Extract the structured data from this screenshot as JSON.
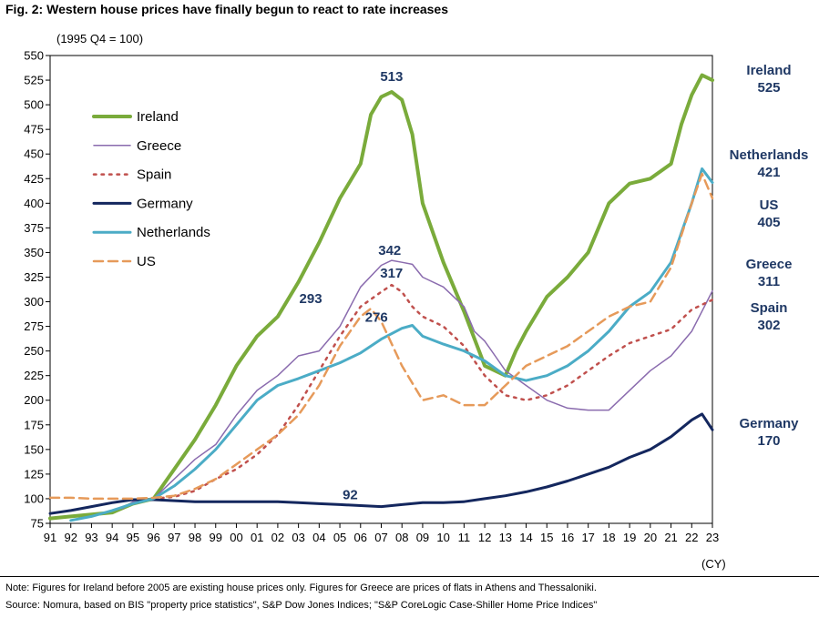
{
  "title": "Fig. 2: Western house prices have finally begun to react to rate increases",
  "unit_label": "(1995 Q4 = 100)",
  "xaxis_suffix": "(CY)",
  "note": "Note: Figures for Ireland before 2005 are existing house prices only. Figures for Greece are prices of flats in Athens and Thessaloniki.",
  "source": "Source: Nomura, based on BIS \"property price statistics\", S&P Dow Jones Indices; \"S&P CoreLogic Case-Shiller Home Price Indices\"",
  "chart_data": {
    "type": "line",
    "xlim": [
      1991,
      2023
    ],
    "ylim": [
      75,
      550
    ],
    "y_ticks": [
      75,
      100,
      125,
      150,
      175,
      200,
      225,
      250,
      275,
      300,
      325,
      350,
      375,
      400,
      425,
      450,
      475,
      500,
      525,
      550
    ],
    "x_tick_labels": [
      "91",
      "92",
      "93",
      "94",
      "95",
      "96",
      "97",
      "98",
      "99",
      "00",
      "01",
      "02",
      "03",
      "04",
      "05",
      "06",
      "07",
      "08",
      "09",
      "10",
      "11",
      "12",
      "13",
      "14",
      "15",
      "16",
      "17",
      "18",
      "19",
      "20",
      "21",
      "22",
      "23"
    ],
    "legend_position": "top-left",
    "series": [
      {
        "name": "Ireland",
        "color": "#7aab3b",
        "style": "solid",
        "width": 4,
        "points": [
          [
            1991,
            80
          ],
          [
            1992,
            82
          ],
          [
            1993,
            84
          ],
          [
            1994,
            86
          ],
          [
            1995,
            95
          ],
          [
            1996,
            100
          ],
          [
            1997,
            130
          ],
          [
            1998,
            160
          ],
          [
            1999,
            195
          ],
          [
            2000,
            235
          ],
          [
            2001,
            265
          ],
          [
            2002,
            285
          ],
          [
            2003,
            320
          ],
          [
            2004,
            360
          ],
          [
            2005,
            405
          ],
          [
            2006,
            440
          ],
          [
            2006.5,
            490
          ],
          [
            2007,
            508
          ],
          [
            2007.5,
            513
          ],
          [
            2008,
            505
          ],
          [
            2008.5,
            470
          ],
          [
            2009,
            400
          ],
          [
            2009.5,
            370
          ],
          [
            2010,
            340
          ],
          [
            2011,
            290
          ],
          [
            2012,
            235
          ],
          [
            2013,
            225
          ],
          [
            2013.5,
            250
          ],
          [
            2014,
            270
          ],
          [
            2015,
            305
          ],
          [
            2016,
            325
          ],
          [
            2017,
            350
          ],
          [
            2018,
            400
          ],
          [
            2019,
            420
          ],
          [
            2020,
            425
          ],
          [
            2021,
            440
          ],
          [
            2021.5,
            480
          ],
          [
            2022,
            510
          ],
          [
            2022.5,
            530
          ],
          [
            2023,
            525
          ]
        ]
      },
      {
        "name": "Greece",
        "color": "#8a6bae",
        "style": "solid",
        "width": 1.5,
        "points": [
          [
            1994.5,
            90
          ],
          [
            1995,
            97
          ],
          [
            1996,
            100
          ],
          [
            1997,
            120
          ],
          [
            1998,
            140
          ],
          [
            1999,
            155
          ],
          [
            2000,
            185
          ],
          [
            2001,
            210
          ],
          [
            2002,
            225
          ],
          [
            2003,
            245
          ],
          [
            2004,
            250
          ],
          [
            2005,
            275
          ],
          [
            2006,
            315
          ],
          [
            2007,
            337
          ],
          [
            2007.5,
            342
          ],
          [
            2008,
            340
          ],
          [
            2008.5,
            338
          ],
          [
            2009,
            325
          ],
          [
            2010,
            315
          ],
          [
            2011,
            295
          ],
          [
            2011.5,
            270
          ],
          [
            2012,
            260
          ],
          [
            2012.5,
            245
          ],
          [
            2013,
            230
          ],
          [
            2014,
            215
          ],
          [
            2015,
            200
          ],
          [
            2016,
            192
          ],
          [
            2017,
            190
          ],
          [
            2018,
            190
          ],
          [
            2019,
            210
          ],
          [
            2020,
            230
          ],
          [
            2021,
            245
          ],
          [
            2022,
            270
          ],
          [
            2023,
            311
          ]
        ]
      },
      {
        "name": "Spain",
        "color": "#c0504d",
        "style": "dotted",
        "width": 2.5,
        "points": [
          [
            1996,
            100
          ],
          [
            1997,
            102
          ],
          [
            1998,
            108
          ],
          [
            1999,
            120
          ],
          [
            2000,
            130
          ],
          [
            2001,
            145
          ],
          [
            2002,
            165
          ],
          [
            2003,
            195
          ],
          [
            2004,
            230
          ],
          [
            2005,
            265
          ],
          [
            2006,
            295
          ],
          [
            2007,
            310
          ],
          [
            2007.5,
            317
          ],
          [
            2008,
            310
          ],
          [
            2008.5,
            295
          ],
          [
            2009,
            285
          ],
          [
            2010,
            275
          ],
          [
            2011,
            255
          ],
          [
            2012,
            225
          ],
          [
            2013,
            205
          ],
          [
            2014,
            200
          ],
          [
            2015,
            205
          ],
          [
            2016,
            215
          ],
          [
            2017,
            230
          ],
          [
            2018,
            245
          ],
          [
            2019,
            258
          ],
          [
            2020,
            265
          ],
          [
            2021,
            272
          ],
          [
            2022,
            292
          ],
          [
            2023,
            302
          ]
        ]
      },
      {
        "name": "Germany",
        "color": "#14275e",
        "style": "solid",
        "width": 3,
        "points": [
          [
            1991,
            85
          ],
          [
            1992,
            88
          ],
          [
            1993,
            92
          ],
          [
            1994,
            96
          ],
          [
            1995,
            99
          ],
          [
            1996,
            99
          ],
          [
            1997,
            98
          ],
          [
            1998,
            97
          ],
          [
            1999,
            97
          ],
          [
            2000,
            97
          ],
          [
            2001,
            97
          ],
          [
            2002,
            97
          ],
          [
            2003,
            96
          ],
          [
            2004,
            95
          ],
          [
            2005,
            94
          ],
          [
            2006,
            93
          ],
          [
            2007,
            92
          ],
          [
            2008,
            94
          ],
          [
            2009,
            96
          ],
          [
            2010,
            96
          ],
          [
            2011,
            97
          ],
          [
            2012,
            100
          ],
          [
            2013,
            103
          ],
          [
            2014,
            107
          ],
          [
            2015,
            112
          ],
          [
            2016,
            118
          ],
          [
            2017,
            125
          ],
          [
            2018,
            132
          ],
          [
            2019,
            142
          ],
          [
            2020,
            150
          ],
          [
            2021,
            163
          ],
          [
            2022,
            180
          ],
          [
            2022.5,
            186
          ],
          [
            2023,
            170
          ]
        ]
      },
      {
        "name": "Netherlands",
        "color": "#4bacc6",
        "style": "solid",
        "width": 3,
        "points": [
          [
            1992,
            78
          ],
          [
            1993,
            82
          ],
          [
            1994,
            88
          ],
          [
            1995,
            95
          ],
          [
            1996,
            100
          ],
          [
            1997,
            113
          ],
          [
            1998,
            130
          ],
          [
            1999,
            150
          ],
          [
            2000,
            175
          ],
          [
            2001,
            200
          ],
          [
            2002,
            215
          ],
          [
            2003,
            222
          ],
          [
            2004,
            230
          ],
          [
            2005,
            238
          ],
          [
            2006,
            248
          ],
          [
            2007,
            262
          ],
          [
            2008,
            273
          ],
          [
            2008.5,
            276
          ],
          [
            2009,
            265
          ],
          [
            2010,
            257
          ],
          [
            2011,
            250
          ],
          [
            2012,
            240
          ],
          [
            2013,
            225
          ],
          [
            2014,
            220
          ],
          [
            2015,
            225
          ],
          [
            2016,
            235
          ],
          [
            2017,
            250
          ],
          [
            2018,
            270
          ],
          [
            2019,
            295
          ],
          [
            2020,
            310
          ],
          [
            2021,
            340
          ],
          [
            2022,
            400
          ],
          [
            2022.5,
            435
          ],
          [
            2023,
            421
          ]
        ]
      },
      {
        "name": "US",
        "color": "#e69a5a",
        "style": "dashed",
        "width": 2.5,
        "points": [
          [
            1991,
            101
          ],
          [
            1992,
            101
          ],
          [
            1993,
            100
          ],
          [
            1994,
            100
          ],
          [
            1995,
            100
          ],
          [
            1996,
            101
          ],
          [
            1997,
            103
          ],
          [
            1998,
            110
          ],
          [
            1999,
            120
          ],
          [
            2000,
            135
          ],
          [
            2001,
            150
          ],
          [
            2002,
            165
          ],
          [
            2003,
            185
          ],
          [
            2004,
            215
          ],
          [
            2005,
            255
          ],
          [
            2006,
            285
          ],
          [
            2006.5,
            293
          ],
          [
            2007,
            280
          ],
          [
            2008,
            235
          ],
          [
            2009,
            200
          ],
          [
            2010,
            205
          ],
          [
            2011,
            195
          ],
          [
            2012,
            195
          ],
          [
            2013,
            215
          ],
          [
            2014,
            235
          ],
          [
            2015,
            245
          ],
          [
            2016,
            255
          ],
          [
            2017,
            270
          ],
          [
            2018,
            285
          ],
          [
            2019,
            295
          ],
          [
            2020,
            300
          ],
          [
            2021,
            335
          ],
          [
            2022,
            400
          ],
          [
            2022.5,
            430
          ],
          [
            2023,
            405
          ]
        ]
      }
    ],
    "annotations": [
      {
        "text": "513",
        "x": 2007.5,
        "y": 513
      },
      {
        "text": "342",
        "x": 2008.2,
        "y": 342
      },
      {
        "text": "317",
        "x": 2008.2,
        "y": 317
      },
      {
        "text": "293",
        "x": 2005,
        "y": 293
      },
      {
        "text": "276",
        "x": 2008,
        "y": 276
      },
      {
        "text": "92",
        "x": 2005.5,
        "y": 92
      }
    ],
    "end_labels": [
      {
        "name": "Ireland",
        "value": "525"
      },
      {
        "name": "Netherlands",
        "value": "421"
      },
      {
        "name": "US",
        "value": "405"
      },
      {
        "name": "Greece",
        "value": "311"
      },
      {
        "name": "Spain",
        "value": "302"
      },
      {
        "name": "Germany",
        "value": "170"
      }
    ]
  }
}
